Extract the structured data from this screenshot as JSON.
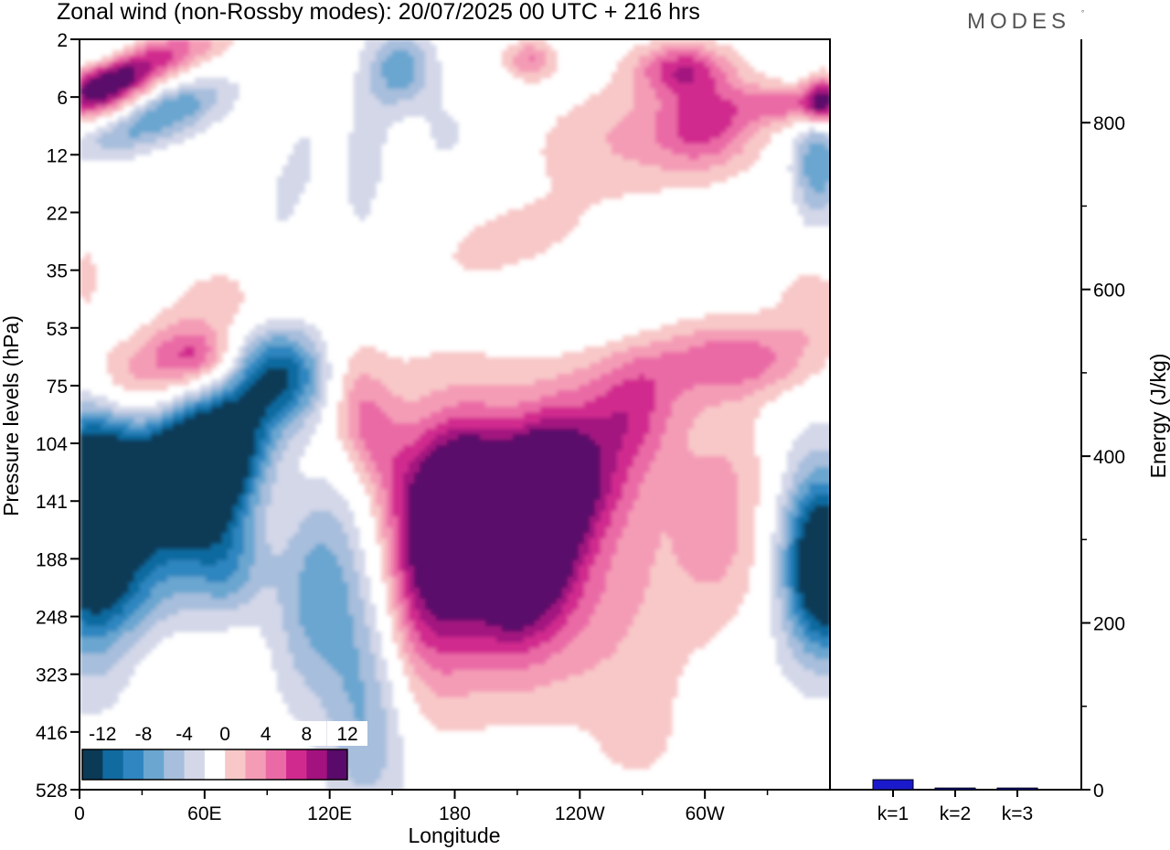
{
  "header": {
    "title": "Zonal wind (non-Rossby modes):  20/07/2025  00 UTC  + 216 hrs",
    "brand": "MODES"
  },
  "chart_data": [
    {
      "type": "heatmap",
      "title": "Zonal wind (non-Rossby modes):  20/07/2025  00 UTC  + 216 hrs",
      "xlabel": "Longitude",
      "ylabel": "Pressure levels (hPa)",
      "x_ticks": [
        "0",
        "60E",
        "120E",
        "180",
        "120W",
        "60W"
      ],
      "x_tick_degrees": [
        0,
        60,
        120,
        180,
        240,
        300
      ],
      "x_range_degrees": [
        0,
        360
      ],
      "y_ticks": [
        "2",
        "6",
        "12",
        "22",
        "35",
        "53",
        "75",
        "104",
        "141",
        "188",
        "248",
        "323",
        "416",
        "528"
      ],
      "colorbar": {
        "labels": [
          "-12",
          "-8",
          "-4",
          "0",
          "4",
          "8",
          "12"
        ],
        "levels": [
          -14,
          -12,
          -10,
          -8,
          -6,
          -4,
          -2,
          2,
          4,
          6,
          8,
          10,
          12,
          14
        ],
        "colors": [
          "#0b3a57",
          "#116aa0",
          "#2f86c0",
          "#6aa6d0",
          "#a7bedc",
          "#d3d7e8",
          "#ffffff",
          "#f8c8c8",
          "#f49cb6",
          "#ea6aa6",
          "#d12a8e",
          "#a3127f",
          "#5a0a6a"
        ]
      },
      "features": [
        {
          "sign": "negative",
          "label": "upper-left easterly band",
          "lon": 70,
          "level": "141",
          "peak": -14
        },
        {
          "sign": "positive",
          "label": "westerly core near 120W",
          "lon": 215,
          "level": "141",
          "peak": 14
        },
        {
          "sign": "negative",
          "label": "core near 0/360",
          "lon": 358,
          "level": "188",
          "peak": -14
        },
        {
          "sign": "positive",
          "label": "stratospheric band",
          "lon": 5,
          "level": "6",
          "peak": 12
        }
      ]
    },
    {
      "type": "bar",
      "title": "",
      "xlabel": "",
      "ylabel": "Energy (J/kg)",
      "categories": [
        "k=1",
        "k=2",
        "k=3"
      ],
      "values": [
        12,
        2,
        2
      ],
      "ylim": [
        0,
        900
      ],
      "y_ticks": [
        "0",
        "200",
        "400",
        "600",
        "800"
      ],
      "bar_color": "#1a1acc"
    }
  ]
}
